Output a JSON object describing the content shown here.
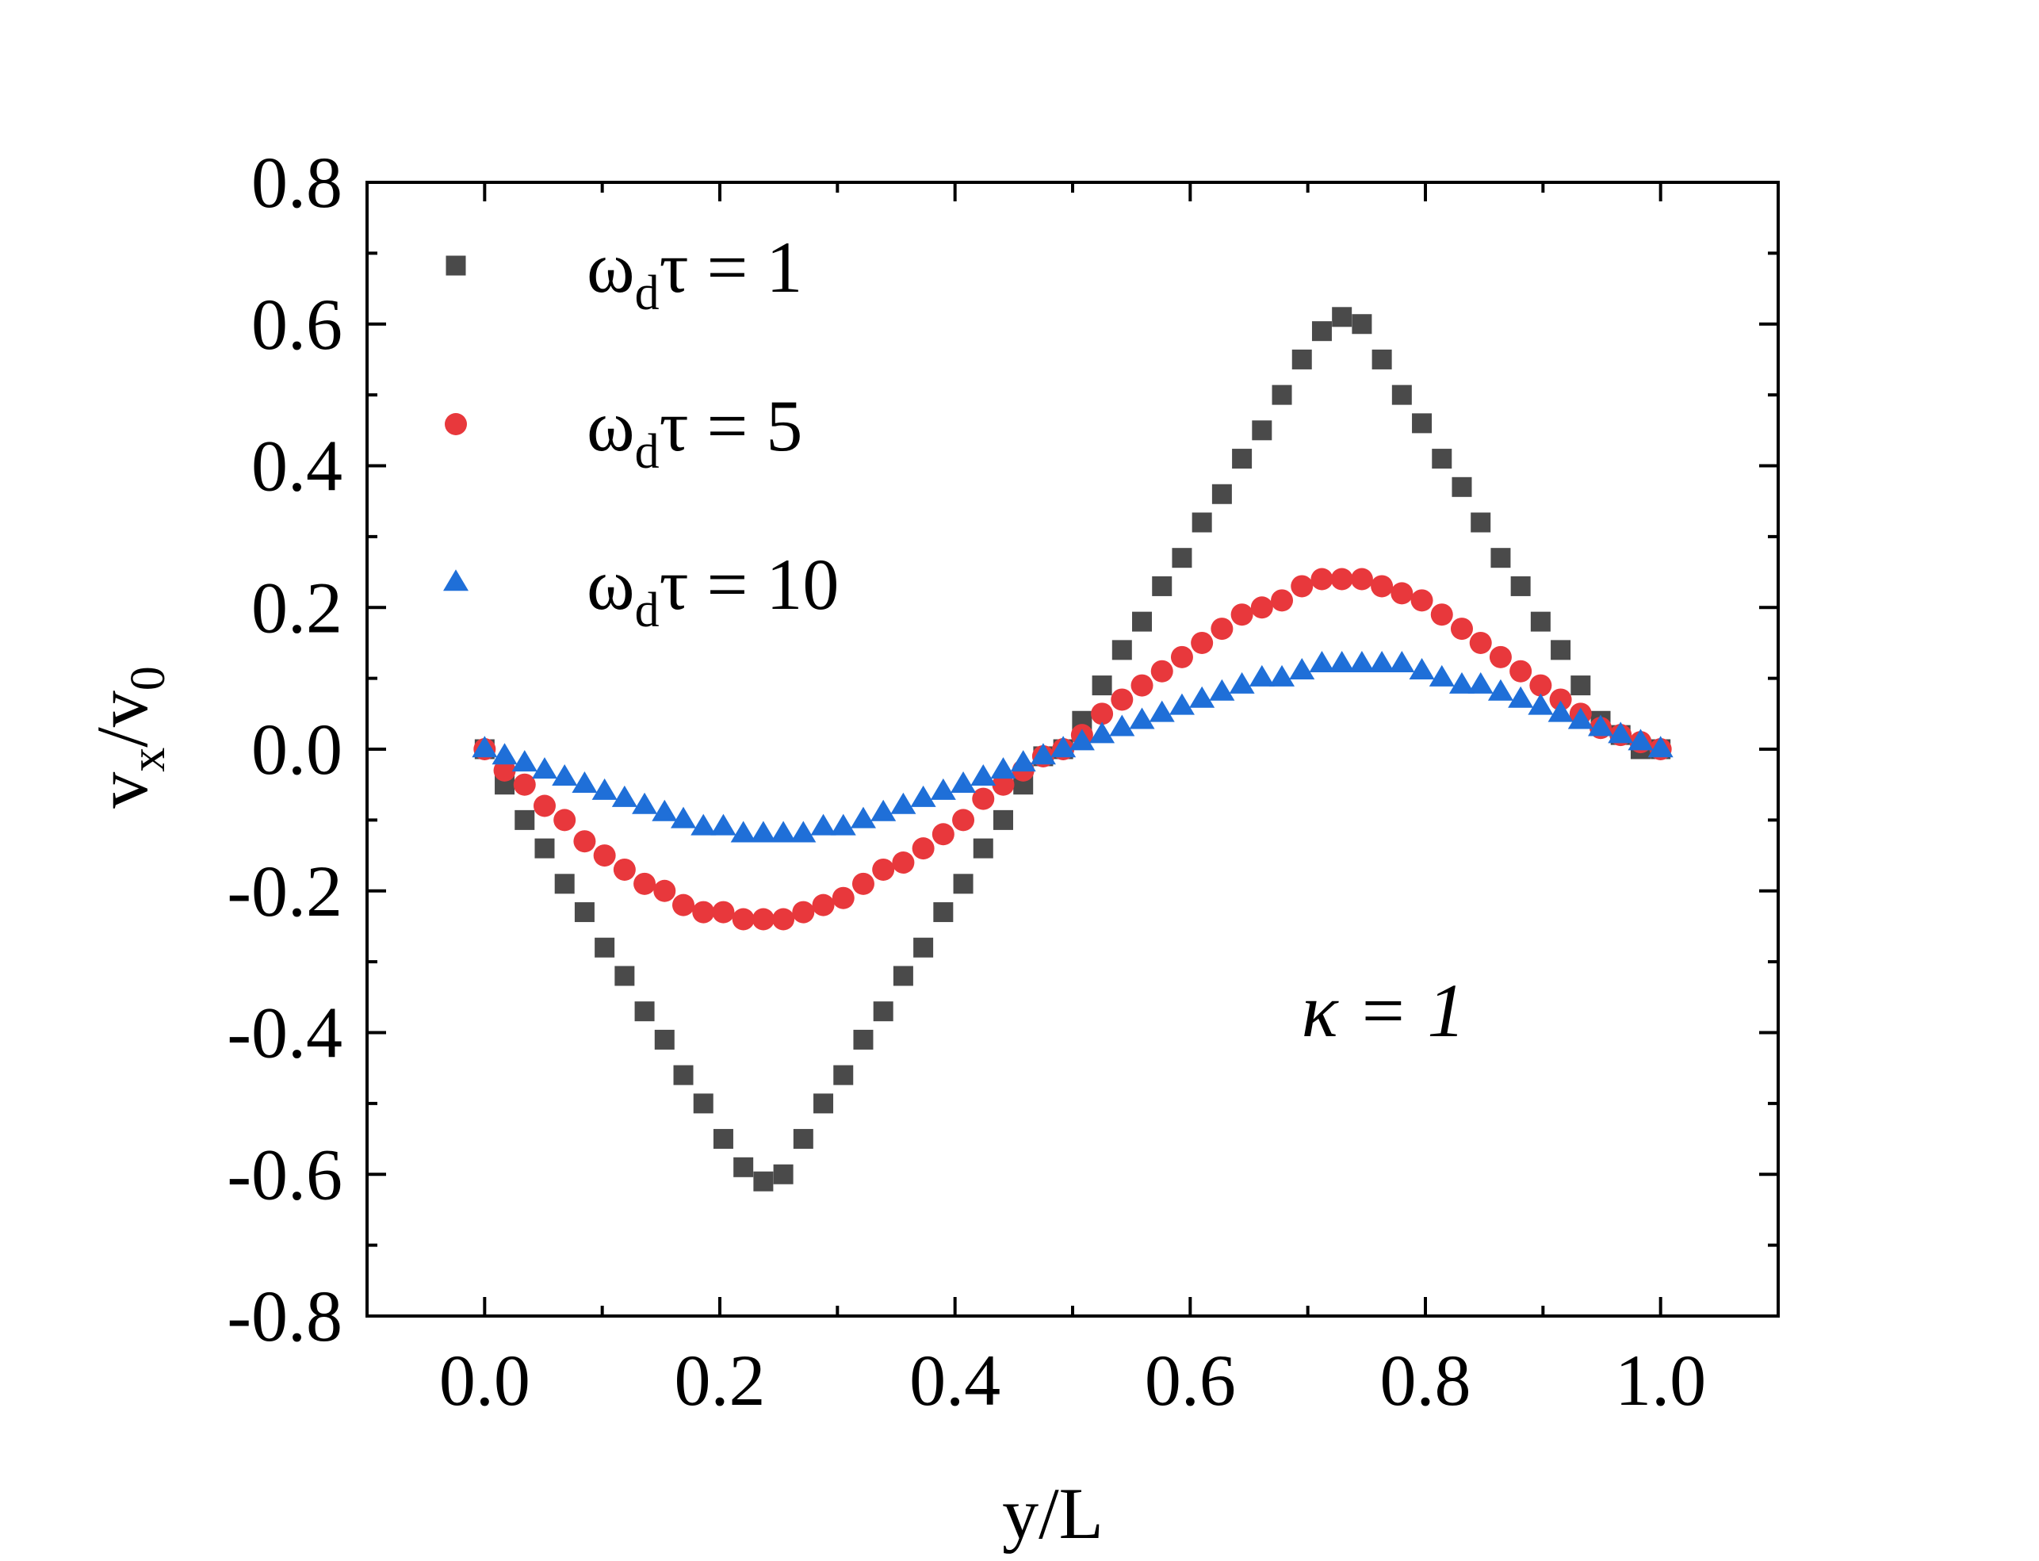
{
  "chart_data": {
    "type": "scatter",
    "xlabel": "y/L",
    "ylabel": {
      "base": "v",
      "sub": "x",
      "sep": "/v",
      "sub2": "0"
    },
    "xlim": [
      -0.1,
      1.1
    ],
    "ylim": [
      -0.8,
      0.8
    ],
    "xticks": [
      0.0,
      0.2,
      0.4,
      0.6,
      0.8,
      1.0
    ],
    "xtick_labels": [
      "0.0",
      "0.2",
      "0.4",
      "0.6",
      "0.8",
      "1.0"
    ],
    "yticks": [
      -0.8,
      -0.6,
      -0.4,
      -0.2,
      0.0,
      0.2,
      0.4,
      0.6,
      0.8
    ],
    "ytick_labels": [
      "-0.8",
      "-0.6",
      "-0.4",
      "-0.2",
      "0.0",
      "0.2",
      "0.4",
      "0.6",
      "0.8"
    ],
    "grid": false,
    "legend_position": "top-left",
    "annotation": "κ = 1",
    "series": [
      {
        "name": "ωdτ = 1",
        "legend": {
          "omega": "ω",
          "sub": "d",
          "rest": "τ = 1"
        },
        "marker": "square",
        "color": "#4a4a4a",
        "x": [
          0.0,
          0.017,
          0.034,
          0.051,
          0.068,
          0.085,
          0.102,
          0.119,
          0.136,
          0.153,
          0.169,
          0.186,
          0.203,
          0.22,
          0.237,
          0.254,
          0.271,
          0.288,
          0.305,
          0.322,
          0.339,
          0.356,
          0.373,
          0.39,
          0.407,
          0.424,
          0.441,
          0.458,
          0.475,
          0.492,
          0.508,
          0.525,
          0.542,
          0.559,
          0.576,
          0.593,
          0.61,
          0.627,
          0.644,
          0.661,
          0.678,
          0.695,
          0.712,
          0.729,
          0.746,
          0.763,
          0.78,
          0.797,
          0.814,
          0.831,
          0.847,
          0.864,
          0.881,
          0.898,
          0.915,
          0.932,
          0.949,
          0.966,
          0.983,
          1.0
        ],
        "y": [
          0.0,
          -0.05,
          -0.1,
          -0.14,
          -0.19,
          -0.23,
          -0.28,
          -0.32,
          -0.37,
          -0.41,
          -0.46,
          -0.5,
          -0.55,
          -0.59,
          -0.61,
          -0.6,
          -0.55,
          -0.5,
          -0.46,
          -0.41,
          -0.37,
          -0.32,
          -0.28,
          -0.23,
          -0.19,
          -0.14,
          -0.1,
          -0.05,
          -0.01,
          0.0,
          0.04,
          0.09,
          0.14,
          0.18,
          0.23,
          0.27,
          0.32,
          0.36,
          0.41,
          0.45,
          0.5,
          0.55,
          0.59,
          0.61,
          0.6,
          0.55,
          0.5,
          0.46,
          0.41,
          0.37,
          0.32,
          0.27,
          0.23,
          0.18,
          0.14,
          0.09,
          0.04,
          0.02,
          0.0,
          0.0
        ]
      },
      {
        "name": "ωdτ = 5",
        "legend": {
          "omega": "ω",
          "sub": "d",
          "rest": "τ = 5"
        },
        "marker": "circle",
        "color": "#e8383c",
        "x": [
          0.0,
          0.017,
          0.034,
          0.051,
          0.068,
          0.085,
          0.102,
          0.119,
          0.136,
          0.153,
          0.169,
          0.186,
          0.203,
          0.22,
          0.237,
          0.254,
          0.271,
          0.288,
          0.305,
          0.322,
          0.339,
          0.356,
          0.373,
          0.39,
          0.407,
          0.424,
          0.441,
          0.458,
          0.475,
          0.492,
          0.508,
          0.525,
          0.542,
          0.559,
          0.576,
          0.593,
          0.61,
          0.627,
          0.644,
          0.661,
          0.678,
          0.695,
          0.712,
          0.729,
          0.746,
          0.763,
          0.78,
          0.797,
          0.814,
          0.831,
          0.847,
          0.864,
          0.881,
          0.898,
          0.915,
          0.932,
          0.949,
          0.966,
          0.983,
          1.0
        ],
        "y": [
          0.0,
          -0.03,
          -0.05,
          -0.08,
          -0.1,
          -0.13,
          -0.15,
          -0.17,
          -0.19,
          -0.2,
          -0.22,
          -0.23,
          -0.23,
          -0.24,
          -0.24,
          -0.24,
          -0.23,
          -0.22,
          -0.21,
          -0.19,
          -0.17,
          -0.16,
          -0.14,
          -0.12,
          -0.1,
          -0.07,
          -0.05,
          -0.03,
          -0.01,
          0.0,
          0.02,
          0.05,
          0.07,
          0.09,
          0.11,
          0.13,
          0.15,
          0.17,
          0.19,
          0.2,
          0.21,
          0.23,
          0.24,
          0.24,
          0.24,
          0.23,
          0.22,
          0.21,
          0.19,
          0.17,
          0.15,
          0.13,
          0.11,
          0.09,
          0.07,
          0.05,
          0.03,
          0.02,
          0.01,
          0.0
        ]
      },
      {
        "name": "ωdτ = 10",
        "legend": {
          "omega": "ω",
          "sub": "d",
          "rest": "τ = 10"
        },
        "marker": "triangle",
        "color": "#1f6fd8",
        "x": [
          0.0,
          0.017,
          0.034,
          0.051,
          0.068,
          0.085,
          0.102,
          0.119,
          0.136,
          0.153,
          0.169,
          0.186,
          0.203,
          0.22,
          0.237,
          0.254,
          0.271,
          0.288,
          0.305,
          0.322,
          0.339,
          0.356,
          0.373,
          0.39,
          0.407,
          0.424,
          0.441,
          0.458,
          0.475,
          0.492,
          0.508,
          0.525,
          0.542,
          0.559,
          0.576,
          0.593,
          0.61,
          0.627,
          0.644,
          0.661,
          0.678,
          0.695,
          0.712,
          0.729,
          0.746,
          0.763,
          0.78,
          0.797,
          0.814,
          0.831,
          0.847,
          0.864,
          0.881,
          0.898,
          0.915,
          0.932,
          0.949,
          0.966,
          0.983,
          1.0
        ],
        "y": [
          0.0,
          -0.01,
          -0.02,
          -0.03,
          -0.04,
          -0.05,
          -0.06,
          -0.07,
          -0.08,
          -0.09,
          -0.1,
          -0.11,
          -0.11,
          -0.12,
          -0.12,
          -0.12,
          -0.12,
          -0.11,
          -0.11,
          -0.1,
          -0.09,
          -0.08,
          -0.07,
          -0.06,
          -0.05,
          -0.04,
          -0.03,
          -0.02,
          -0.01,
          0.0,
          0.01,
          0.02,
          0.03,
          0.04,
          0.05,
          0.06,
          0.07,
          0.08,
          0.09,
          0.1,
          0.1,
          0.11,
          0.12,
          0.12,
          0.12,
          0.12,
          0.12,
          0.11,
          0.1,
          0.09,
          0.09,
          0.08,
          0.07,
          0.06,
          0.05,
          0.04,
          0.03,
          0.02,
          0.01,
          0.0
        ]
      }
    ]
  }
}
